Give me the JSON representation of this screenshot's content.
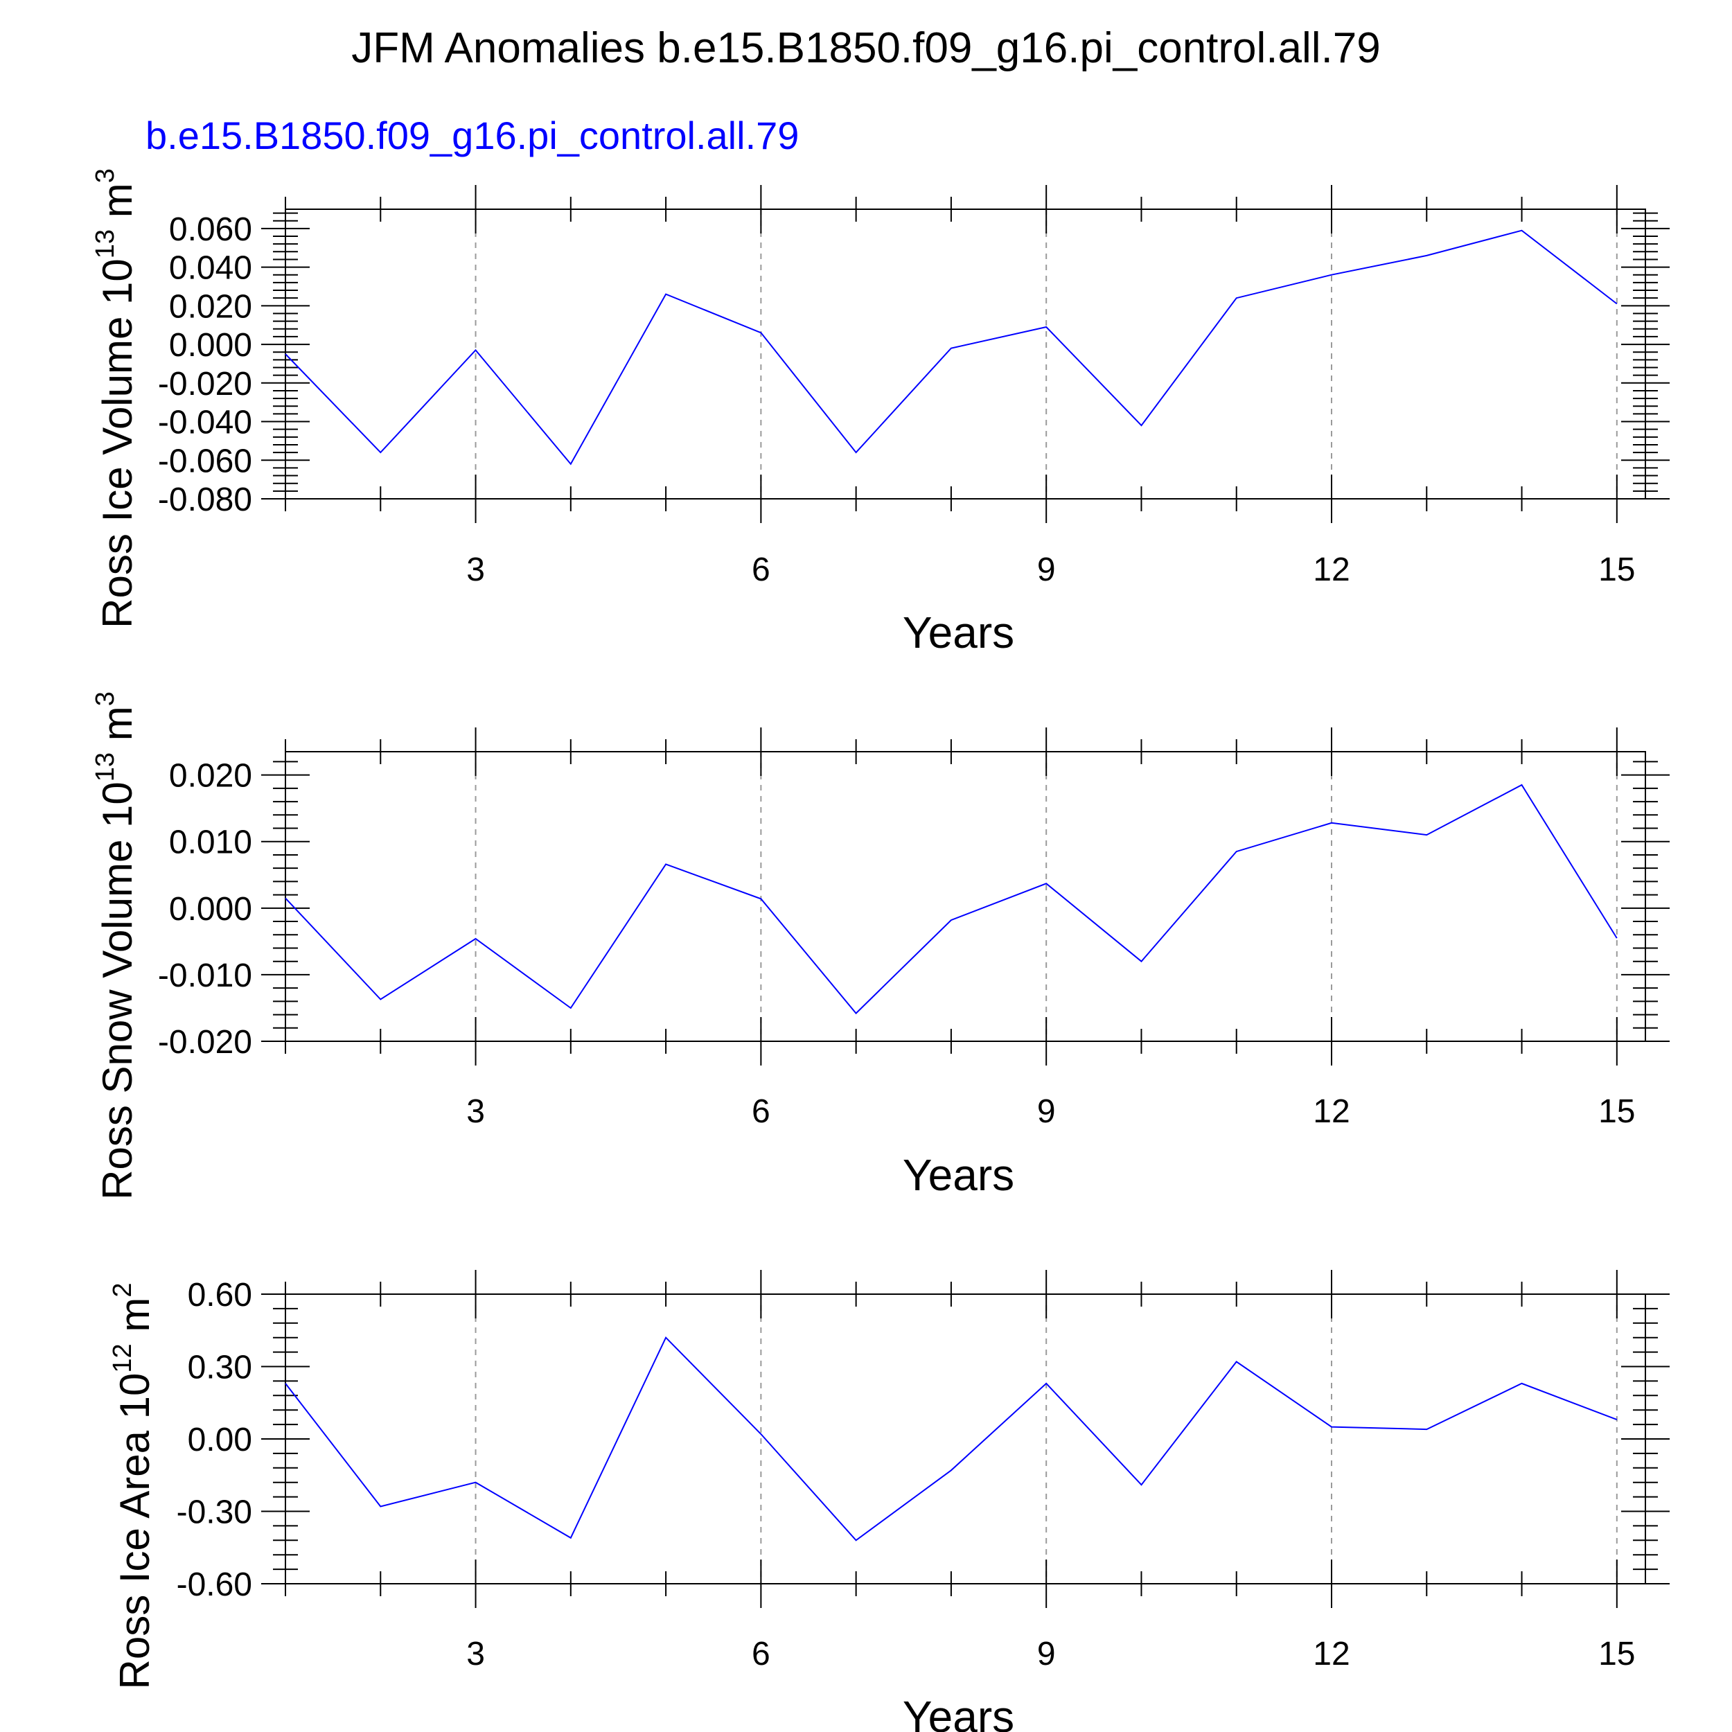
{
  "title": "JFM Anomalies b.e15.B1850.f09_g16.pi_control.all.79",
  "subtitle": "b.e15.B1850.f09_g16.pi_control.all.79",
  "colors": {
    "series": "#0000ff",
    "axis": "#000000",
    "grid": "#9a9a9a",
    "subtitle": "#0000ff"
  },
  "chart_data": [
    {
      "type": "line",
      "ylabel": {
        "text": "Ross Ice Volume 10",
        "exponent": "13",
        "unit": " m",
        "unit_exponent": "3"
      },
      "xlabel": "Years",
      "xlim": [
        1,
        15.3
      ],
      "ylim": [
        -0.08,
        0.07
      ],
      "yticks": [
        -0.08,
        -0.06,
        -0.04,
        -0.02,
        0.0,
        0.02,
        0.04,
        0.06
      ],
      "ytick_labels": [
        "-0.080",
        "-0.060",
        "-0.040",
        "-0.020",
        "0.000",
        "0.020",
        "0.040",
        "0.060"
      ],
      "xticks": [
        3,
        6,
        9,
        12,
        15
      ],
      "xtick_labels": [
        "3",
        "6",
        "9",
        "12",
        "15"
      ],
      "x": [
        1,
        2,
        3,
        4,
        5,
        6,
        7,
        8,
        9,
        10,
        11,
        12,
        13,
        14,
        15
      ],
      "series": [
        {
          "name": "b.e15.B1850.f09_g16.pi_control.all.79",
          "values": [
            -0.005,
            -0.056,
            -0.003,
            -0.062,
            0.026,
            0.006,
            -0.056,
            -0.002,
            0.009,
            -0.042,
            0.024,
            0.036,
            0.046,
            0.059,
            0.021
          ]
        }
      ]
    },
    {
      "type": "line",
      "ylabel": {
        "text": "Ross Snow Volume 10",
        "exponent": "13",
        "unit": " m",
        "unit_exponent": "3"
      },
      "xlabel": "Years",
      "xlim": [
        1,
        15.3
      ],
      "ylim": [
        -0.02,
        0.0235
      ],
      "yticks": [
        -0.02,
        -0.01,
        0.0,
        0.01,
        0.02
      ],
      "ytick_labels": [
        "-0.020",
        "-0.010",
        "0.000",
        "0.010",
        "0.020"
      ],
      "xticks": [
        3,
        6,
        9,
        12,
        15
      ],
      "xtick_labels": [
        "3",
        "6",
        "9",
        "12",
        "15"
      ],
      "x": [
        1,
        2,
        3,
        4,
        5,
        6,
        7,
        8,
        9,
        10,
        11,
        12,
        13,
        14,
        15
      ],
      "series": [
        {
          "name": "b.e15.B1850.f09_g16.pi_control.all.79",
          "values": [
            0.0015,
            -0.0137,
            -0.0046,
            -0.015,
            0.0066,
            0.0014,
            -0.0158,
            -0.0018,
            0.0037,
            -0.008,
            0.0085,
            0.0128,
            0.011,
            0.0185,
            -0.0045
          ]
        }
      ]
    },
    {
      "type": "line",
      "ylabel": {
        "text": "Ross Ice Area 10",
        "exponent": "12",
        "unit": " m",
        "unit_exponent": "2"
      },
      "xlabel": "Years",
      "xlim": [
        1,
        15.3
      ],
      "ylim": [
        -0.6,
        0.6
      ],
      "yticks": [
        -0.6,
        -0.3,
        0.0,
        0.3,
        0.6
      ],
      "ytick_labels": [
        "-0.60",
        "-0.30",
        "0.00",
        "0.30",
        "0.60"
      ],
      "xticks": [
        3,
        6,
        9,
        12,
        15
      ],
      "xtick_labels": [
        "3",
        "6",
        "9",
        "12",
        "15"
      ],
      "x": [
        1,
        2,
        3,
        4,
        5,
        6,
        7,
        8,
        9,
        10,
        11,
        12,
        13,
        14,
        15
      ],
      "series": [
        {
          "name": "b.e15.B1850.f09_g16.pi_control.all.79",
          "values": [
            0.23,
            -0.28,
            -0.18,
            -0.41,
            0.42,
            0.02,
            -0.42,
            -0.13,
            0.23,
            -0.19,
            0.32,
            0.05,
            0.04,
            0.23,
            0.08
          ]
        }
      ]
    }
  ]
}
